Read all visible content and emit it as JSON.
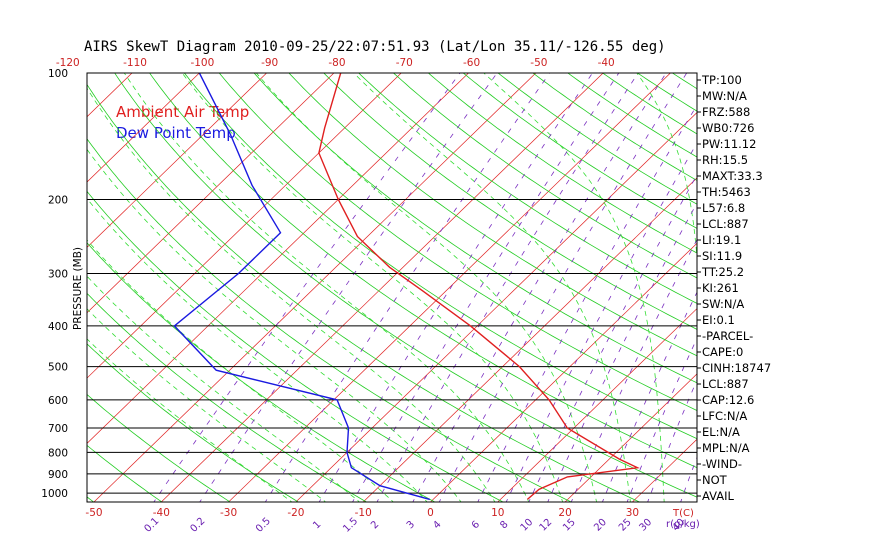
{
  "chart_data": {
    "type": "line",
    "title": "AIRS SkewT Diagram 2010-09-25/22:07:51.93 (Lat/Lon 35.11/-126.55 deg)",
    "ylabel": "PRESSURE (MB)",
    "xlabel": "T(C)",
    "mixing_ratio_label": "r(g/kg)",
    "y_scale": "log",
    "ylim": [
      1050,
      100
    ],
    "xlim_surface": [
      -55,
      40
    ],
    "pressure_ticks": [
      100,
      200,
      300,
      400,
      500,
      600,
      700,
      800,
      900,
      1000
    ],
    "bottom_temp_ticks": [
      -50,
      -40,
      -30,
      -20,
      -10,
      0,
      10,
      20,
      30
    ],
    "top_temp_ticks": [
      -120,
      -110,
      -100,
      -90,
      -80,
      -70,
      -60,
      -50,
      -40
    ],
    "mixing_ratio_ticks": [
      "0.1",
      "0.2",
      "0.5",
      "1",
      "1.5",
      "2",
      "3",
      "4",
      "6",
      "8",
      "10",
      "12",
      "15",
      "20",
      "25",
      "30",
      "40"
    ],
    "legend": [
      {
        "name": "Ambient Air Temp",
        "color": "#e02020"
      },
      {
        "name": "Dew Point Temp",
        "color": "#1a1ae0"
      }
    ],
    "series": [
      {
        "name": "Ambient Air Temp",
        "color": "#e02020",
        "points": [
          {
            "p": 1035,
            "t": 14.0
          },
          {
            "p": 980,
            "t": 14.2
          },
          {
            "p": 915,
            "t": 16.5
          },
          {
            "p": 870,
            "t": 25.5
          },
          {
            "p": 830,
            "t": 21.5
          },
          {
            "p": 700,
            "t": 9.0
          },
          {
            "p": 600,
            "t": 2.0
          },
          {
            "p": 500,
            "t": -7.5
          },
          {
            "p": 400,
            "t": -21.0
          },
          {
            "p": 330,
            "t": -33.5
          },
          {
            "p": 290,
            "t": -42.0
          },
          {
            "p": 245,
            "t": -51.5
          },
          {
            "p": 200,
            "t": -60.0
          },
          {
            "p": 155,
            "t": -70.0
          },
          {
            "p": 135,
            "t": -73.0
          },
          {
            "p": 100,
            "t": -79.0
          }
        ]
      },
      {
        "name": "Dew Point Temp",
        "color": "#1a1ae0",
        "points": [
          {
            "p": 1035,
            "t": -0.5
          },
          {
            "p": 960,
            "t": -10.0
          },
          {
            "p": 870,
            "t": -17.0
          },
          {
            "p": 800,
            "t": -20.0
          },
          {
            "p": 700,
            "t": -23.5
          },
          {
            "p": 600,
            "t": -29.5
          },
          {
            "p": 510,
            "t": -52.0
          },
          {
            "p": 400,
            "t": -65.0
          },
          {
            "p": 300,
            "t": -63.5
          },
          {
            "p": 240,
            "t": -63.5
          },
          {
            "p": 185,
            "t": -75.0
          },
          {
            "p": 140,
            "t": -86.0
          },
          {
            "p": 100,
            "t": -100.0
          }
        ]
      }
    ],
    "grid": {
      "isotherm_step": 10,
      "dry_adiabats_theta_k": [
        200,
        210,
        220,
        230,
        240,
        250,
        260,
        270,
        280,
        290,
        300,
        310,
        320,
        330,
        340,
        350,
        360,
        370,
        380,
        390,
        400,
        410,
        420,
        430,
        440,
        450,
        460,
        470,
        480,
        490,
        500,
        510
      ],
      "moist_adiabats_surface_c": [
        -20,
        -15,
        -10,
        -5,
        0,
        5,
        10,
        15,
        20,
        25,
        30,
        35,
        40
      ],
      "mixing_ratios_gkg": [
        0.1,
        0.2,
        0.5,
        1,
        1.5,
        2,
        3,
        4,
        6,
        8,
        10,
        12,
        15,
        20,
        25,
        30,
        40
      ]
    },
    "indices": [
      "TP:100",
      "MW:N/A",
      "FRZ:588",
      "WB0:726",
      "PW:11.12",
      "RH:15.5",
      "MAXT:33.3",
      "TH:5463",
      "L57:6.8",
      "LCL:887",
      "LI:19.1",
      "SI:11.9",
      "TT:25.2",
      "KI:261",
      "SW:N/A",
      "EI:0.1",
      "-PARCEL-",
      "CAPE:0",
      "CINH:18747",
      "LCL:887",
      "CAP:12.6",
      "LFC:N/A",
      "EL:N/A",
      "MPL:N/A",
      "-WIND-",
      "NOT",
      "AVAIL"
    ]
  }
}
